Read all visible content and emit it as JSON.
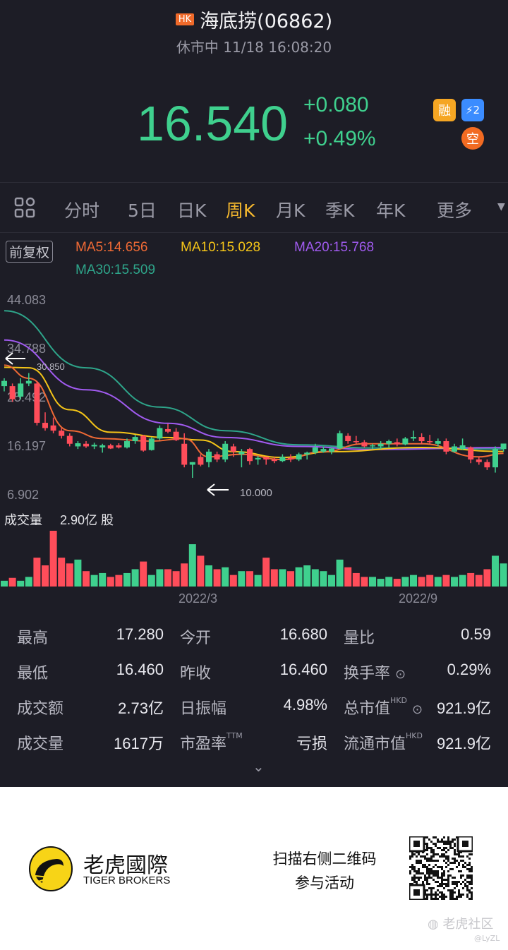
{
  "header": {
    "market_badge": "HK",
    "title": "海底捞(06862)",
    "status": "休市中 11/18 16:08:20"
  },
  "quote": {
    "price": "16.540",
    "change": "+0.080",
    "change_pct": "+0.49%",
    "up_color": "#3fd08e",
    "down_color": "#ff4d5a",
    "badges": [
      {
        "label": "融",
        "icon": "margin-badge",
        "color": "#f5a623"
      },
      {
        "label": "⚡2",
        "icon": "lightning-level2-badge",
        "color": "#3b8cff"
      },
      {
        "label": "空",
        "icon": "short-badge",
        "color": "#f26b22"
      }
    ]
  },
  "tabs": [
    {
      "label": "",
      "icon": "grid-icon"
    },
    {
      "label": "分时"
    },
    {
      "label": "5日"
    },
    {
      "label": "日K"
    },
    {
      "label": "周K",
      "active": true
    },
    {
      "label": "月K"
    },
    {
      "label": "季K"
    },
    {
      "label": "年K"
    },
    {
      "label": "更多",
      "icon": "caret-down-icon"
    }
  ],
  "chart": {
    "adjust": "前复权",
    "ma_labels": [
      {
        "text": "MA5:14.656",
        "color": "#f06a35"
      },
      {
        "text": "MA10:15.028",
        "color": "#f5c518"
      },
      {
        "text": "MA20:15.768",
        "color": "#a15bf0"
      },
      {
        "text": "MA30:15.509",
        "color": "#2ea58a"
      }
    ],
    "y_ticks": [
      "44.083",
      "34.788",
      "25.492",
      "16.197",
      "6.902"
    ],
    "high_marker": "30.850",
    "low_marker": "10.000",
    "volume_label": "成交量",
    "volume_value": "2.90亿 股",
    "x_ticks": [
      "2022/3",
      "2022/9"
    ]
  },
  "chart_data": {
    "type": "candlestick",
    "ylim": [
      6.902,
      44.083
    ],
    "volume_max": 2.9,
    "candles": [
      [
        27.5,
        29,
        26.5,
        28.5
      ],
      [
        27.5,
        28,
        24.5,
        25
      ],
      [
        25.5,
        29,
        25,
        28
      ],
      [
        28,
        30,
        27.5,
        28.5
      ],
      [
        28,
        28.5,
        20,
        20.5
      ],
      [
        20.5,
        22.5,
        19,
        19.5
      ],
      [
        20,
        21.5,
        18.5,
        19
      ],
      [
        19,
        19.5,
        17.5,
        18
      ],
      [
        18,
        18.5,
        16,
        16.5
      ],
      [
        16,
        17,
        15.5,
        16.6
      ],
      [
        16.5,
        17,
        15.7,
        16
      ],
      [
        16,
        16.7,
        15.5,
        16.3
      ],
      [
        15.8,
        16.5,
        14.8,
        16.2
      ],
      [
        16.2,
        16.5,
        15.5,
        15.6
      ],
      [
        16.2,
        16.6,
        15.6,
        15.8
      ],
      [
        15.8,
        17.5,
        15.6,
        17
      ],
      [
        17,
        18.2,
        16.5,
        17.8
      ],
      [
        18,
        18.2,
        15,
        15.2
      ],
      [
        15.3,
        17.8,
        15.2,
        17.5
      ],
      [
        17.5,
        20,
        17.2,
        19.5
      ],
      [
        19.3,
        20.3,
        18.5,
        18.8
      ],
      [
        18.8,
        19.5,
        17,
        17.2
      ],
      [
        16.5,
        18.5,
        12,
        12.5
      ],
      [
        12.5,
        13,
        10,
        13
      ],
      [
        14,
        14.5,
        12.2,
        12.5
      ],
      [
        13,
        15.5,
        12,
        15
      ],
      [
        14.5,
        15,
        13,
        13.5
      ],
      [
        13.5,
        17,
        13,
        16.5
      ],
      [
        16,
        16.5,
        14,
        15
      ],
      [
        14.5,
        15.5,
        12,
        15
      ],
      [
        15.5,
        15.7,
        12.5,
        13.2
      ],
      [
        13.5,
        14.2,
        12.5,
        13.8
      ],
      [
        14,
        14,
        12.5,
        13.5
      ],
      [
        13.5,
        14,
        12.8,
        13.2
      ],
      [
        13.2,
        14.5,
        13,
        14
      ],
      [
        13.8,
        14.5,
        13,
        13.5
      ],
      [
        13.5,
        14.8,
        13.2,
        14.5
      ],
      [
        14.5,
        15,
        13.5,
        14.8
      ],
      [
        14.8,
        16.5,
        14.5,
        15.8
      ],
      [
        15,
        16,
        14.8,
        15.5
      ],
      [
        15,
        15.8,
        14.5,
        15.6
      ],
      [
        15.6,
        19,
        15.5,
        18.5
      ],
      [
        18,
        18.5,
        16.5,
        17
      ],
      [
        17,
        18,
        16.5,
        16.8
      ],
      [
        16.8,
        17.2,
        15.8,
        16
      ],
      [
        16,
        16.5,
        15.5,
        16.2
      ],
      [
        16,
        17,
        15.5,
        16.5
      ],
      [
        16.5,
        17.3,
        15.8,
        17
      ],
      [
        16.8,
        17.5,
        16,
        16.4
      ],
      [
        16.4,
        17.8,
        16.2,
        17.5
      ],
      [
        17.5,
        19,
        17,
        17.8
      ],
      [
        17.8,
        18.5,
        16.5,
        17
      ],
      [
        17,
        18.2,
        16.5,
        16.8
      ],
      [
        16.5,
        17.5,
        16,
        17
      ],
      [
        17,
        17.5,
        14.5,
        15
      ],
      [
        15,
        16.5,
        14.8,
        16
      ],
      [
        15.5,
        17.5,
        15.3,
        16.2
      ],
      [
        15.8,
        16,
        12.8,
        13.5
      ],
      [
        13.5,
        14,
        12.5,
        13
      ],
      [
        13,
        13.5,
        11.5,
        12
      ],
      [
        12,
        16,
        11,
        15.5
      ],
      [
        15.5,
        16.2,
        15,
        16.54
      ]
    ],
    "volumes": [
      0.3,
      0.45,
      0.3,
      0.5,
      1.5,
      1.1,
      2.9,
      1.5,
      1.2,
      1.4,
      0.8,
      0.6,
      0.7,
      0.5,
      0.6,
      0.7,
      0.9,
      1.3,
      0.6,
      0.9,
      0.9,
      0.8,
      1.2,
      2.2,
      1.6,
      1.1,
      0.9,
      1.0,
      0.6,
      0.8,
      0.8,
      0.6,
      1.5,
      0.9,
      0.9,
      0.8,
      1.0,
      1.1,
      0.9,
      0.8,
      0.6,
      1.4,
      1.0,
      0.7,
      0.5,
      0.5,
      0.4,
      0.5,
      0.4,
      0.5,
      0.6,
      0.5,
      0.6,
      0.5,
      0.6,
      0.5,
      0.6,
      0.7,
      0.6,
      0.9,
      1.6,
      1.2
    ],
    "ma_lines": [
      {
        "name": "MA30",
        "points": [
          [
            0,
            41.9
          ],
          [
            10,
            31
          ],
          [
            19,
            23.5
          ],
          [
            27,
            19
          ],
          [
            36,
            16.3
          ],
          [
            45,
            15.7
          ],
          [
            61,
            15.5
          ]
        ]
      },
      {
        "name": "MA20",
        "points": [
          [
            0,
            36.3
          ],
          [
            10,
            26.8
          ],
          [
            20,
            20.4
          ],
          [
            27,
            17.7
          ],
          [
            36,
            16
          ],
          [
            45,
            15.4
          ],
          [
            61,
            15.77
          ]
        ]
      },
      {
        "name": "MA10",
        "points": [
          [
            0,
            31.1
          ],
          [
            3,
            31
          ],
          [
            8,
            23
          ],
          [
            13,
            18.7
          ],
          [
            20,
            17.7
          ],
          [
            24,
            17.2
          ],
          [
            28,
            15
          ],
          [
            34,
            13.9
          ],
          [
            40,
            15
          ],
          [
            51,
            15.8
          ],
          [
            61,
            15.03
          ]
        ]
      },
      {
        "name": "MA5",
        "points": [
          [
            0,
            31.5
          ],
          [
            3,
            29
          ],
          [
            8,
            19
          ],
          [
            12,
            17.5
          ],
          [
            18,
            17
          ],
          [
            22,
            17.5
          ],
          [
            25,
            14
          ],
          [
            29,
            14.5
          ],
          [
            34,
            13.5
          ],
          [
            39,
            15
          ],
          [
            44,
            16.5
          ],
          [
            51,
            16.5
          ],
          [
            58,
            14
          ],
          [
            61,
            14.66
          ]
        ]
      }
    ]
  },
  "stats": [
    [
      {
        "label": "最高",
        "value": "17.280"
      },
      {
        "label": "今开",
        "value": "16.680"
      },
      {
        "label": "量比",
        "value": "0.59"
      }
    ],
    [
      {
        "label": "最低",
        "value": "16.460"
      },
      {
        "label": "昨收",
        "value": "16.460"
      },
      {
        "label": "换手率",
        "value": "0.29%",
        "info": true
      }
    ],
    [
      {
        "label": "成交额",
        "value": "2.73亿"
      },
      {
        "label": "日振幅",
        "value": "4.98%"
      },
      {
        "label": "总市值",
        "sup": "HKD",
        "value": "921.9亿",
        "info": true
      }
    ],
    [
      {
        "label": "成交量",
        "value": "1617万"
      },
      {
        "label": "市盈率",
        "sup": "TTM",
        "value": "亏损"
      },
      {
        "label": "流通市值",
        "sup": "HKD",
        "value": "921.9亿"
      }
    ]
  ],
  "footer": {
    "brand_cn": "老虎國際",
    "brand_en": "TIGER BROKERS",
    "cta_line1": "扫描右侧二维码",
    "cta_line2": "参与活动",
    "watermark": "老虎社区",
    "handle": "@LyZL"
  }
}
